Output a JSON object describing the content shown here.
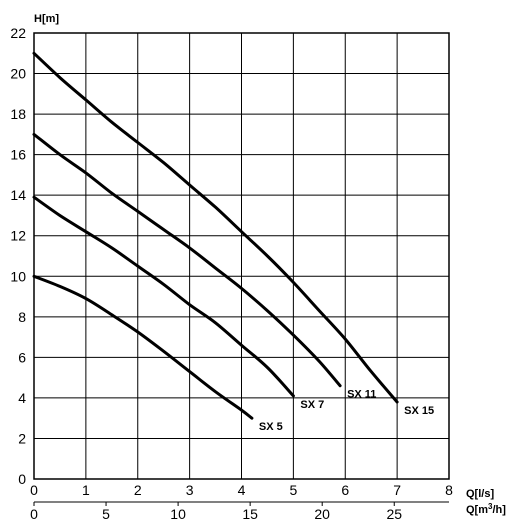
{
  "chart_data": {
    "type": "line",
    "title": "",
    "ylabel": "H[m]",
    "xlabel": "Q[l/s]",
    "xlabel2_prefix": "Q[m",
    "xlabel2_sup": "3",
    "xlabel2_suffix": "/h]",
    "xlim": [
      0,
      8
    ],
    "ylim": [
      0,
      22
    ],
    "x_ticks": [
      "0",
      "1",
      "2",
      "3",
      "4",
      "5",
      "6",
      "7",
      "8"
    ],
    "y_ticks": [
      "0",
      "2",
      "4",
      "6",
      "8",
      "10",
      "12",
      "14",
      "16",
      "18",
      "20",
      "22"
    ],
    "x2_ticks": [
      {
        "value": 0,
        "label": "0"
      },
      {
        "value": 5,
        "label": "5"
      },
      {
        "value": 10,
        "label": "10"
      },
      {
        "value": 15,
        "label": "15"
      },
      {
        "value": 20,
        "label": "20"
      },
      {
        "value": 25,
        "label": "25"
      }
    ],
    "grid": true,
    "series": [
      {
        "name": "SX 5",
        "x": [
          0,
          0.5,
          1,
          1.5,
          2,
          2.5,
          3,
          3.5,
          4,
          4.2
        ],
        "y": [
          10,
          9.5,
          8.9,
          8.1,
          7.25,
          6.3,
          5.3,
          4.3,
          3.4,
          3.0
        ]
      },
      {
        "name": "SX 7",
        "x": [
          0,
          0.5,
          1,
          1.5,
          2,
          2.5,
          3,
          3.5,
          4,
          4.5,
          5
        ],
        "y": [
          13.9,
          13.0,
          12.2,
          11.4,
          10.5,
          9.6,
          8.6,
          7.7,
          6.6,
          5.5,
          4.1
        ]
      },
      {
        "name": "SX 11",
        "x": [
          0,
          0.5,
          1,
          1.5,
          2,
          2.5,
          3,
          3.5,
          4,
          4.5,
          5,
          5.5,
          5.9
        ],
        "y": [
          17.0,
          16.0,
          15.1,
          14.1,
          13.2,
          12.3,
          11.4,
          10.4,
          9.4,
          8.3,
          7.1,
          5.8,
          4.6
        ]
      },
      {
        "name": "SX 15",
        "x": [
          0,
          0.5,
          1,
          1.5,
          2,
          2.5,
          3,
          3.5,
          4,
          4.5,
          5,
          5.5,
          6,
          6.5,
          7
        ],
        "y": [
          21.0,
          19.8,
          18.7,
          17.6,
          16.6,
          15.6,
          14.5,
          13.4,
          12.2,
          11.0,
          9.7,
          8.3,
          6.9,
          5.3,
          3.8
        ]
      }
    ]
  }
}
